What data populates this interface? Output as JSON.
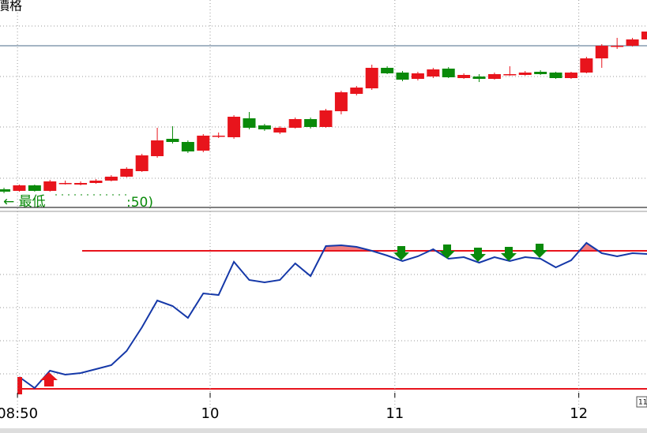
{
  "chart_data": {
    "type": "candlestick",
    "title": "價格",
    "legend_low": "← 最低",
    "legend_tail": ":50)",
    "corner_label": "11",
    "open": [
      30,
      28,
      35,
      28,
      38,
      36,
      38,
      41,
      46,
      53,
      72,
      94,
      90,
      79,
      98,
      96,
      120,
      111,
      102,
      108,
      119,
      109,
      129,
      151,
      158,
      184,
      178,
      170,
      173,
      183,
      171,
      173,
      170,
      176,
      175,
      179,
      178,
      171,
      178,
      196,
      212,
      212,
      220
    ],
    "high": [
      32,
      36,
      36,
      42,
      41,
      40,
      43,
      48,
      58,
      75,
      108,
      110,
      92,
      100,
      102,
      124,
      128,
      113,
      110,
      121,
      121,
      132,
      155,
      161,
      188,
      186,
      180,
      179,
      184,
      185,
      177,
      176,
      178,
      186,
      180,
      181,
      179,
      179,
      198,
      214,
      222,
      222,
      240
    ],
    "low": [
      25,
      27,
      27,
      27,
      36,
      35,
      37,
      40,
      45,
      52,
      70,
      88,
      76,
      77,
      95,
      94,
      106,
      104,
      100,
      107,
      107,
      108,
      125,
      149,
      156,
      176,
      167,
      168,
      171,
      171,
      170,
      166,
      169,
      174,
      174,
      175,
      170,
      170,
      177,
      184,
      208,
      211,
      219
    ],
    "close": [
      27,
      35,
      28,
      40,
      38,
      38,
      41,
      46,
      56,
      73,
      92,
      90,
      78,
      98,
      98,
      122,
      108,
      106,
      108,
      119,
      109,
      130,
      153,
      159,
      184,
      177,
      169,
      177,
      182,
      172,
      175,
      170,
      176,
      176,
      178,
      176,
      171,
      178,
      196,
      212,
      212,
      220,
      230
    ],
    "up_color": "#e8141c",
    "down_color": "#0a8a0a",
    "reference_line": 212,
    "ylim": [
      0,
      270
    ],
    "indicator": {
      "type": "line",
      "color": "#1538a8",
      "values": [
        null,
        22,
        8,
        30,
        25,
        27,
        32,
        37,
        55,
        85,
        119,
        112,
        97,
        128,
        126,
        168,
        145,
        142,
        145,
        166,
        150,
        188,
        189,
        187,
        182,
        176,
        169,
        175,
        184,
        172,
        174,
        167,
        174,
        169,
        174,
        172,
        161,
        170,
        192,
        179,
        175,
        179,
        178
      ],
      "levels": [
        182,
        7
      ],
      "level_color": "#e8141c",
      "fill_color": "#f08080",
      "ylim": [
        0,
        500
      ]
    },
    "xlim": [
      -0.26,
      41.95
    ],
    "xticks": [
      {
        "value": 0.88,
        "label": "08:50"
      },
      {
        "value": 13.45,
        "label": "10"
      },
      {
        "value": 25.5,
        "label": "11"
      },
      {
        "value": 37.5,
        "label": "12"
      }
    ]
  }
}
